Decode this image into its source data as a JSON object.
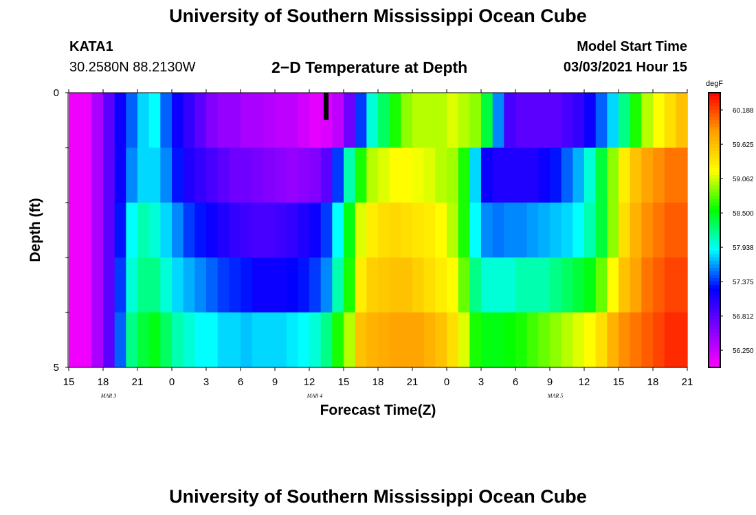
{
  "header": {
    "title": "University of Southern Mississippi Ocean Cube",
    "station": "KATA1",
    "coordinates": "30.2580N 88.2130W",
    "product": "2−D Temperature at Depth",
    "model_start_label": "Model Start Time",
    "model_start_value": "03/03/2021 Hour 15"
  },
  "footer": {
    "title": "University of Southern Mississippi Ocean Cube"
  },
  "chart_data": {
    "type": "heatmap",
    "title": "2−D Temperature at Depth",
    "xlabel": "Forecast Time(Z)",
    "ylabel": "Depth (ft)",
    "x_start_hour_label": "15",
    "x_tick_labels": [
      "15",
      "18",
      "21",
      "0",
      "3",
      "6",
      "9",
      "12",
      "15",
      "18",
      "21",
      "0",
      "3",
      "6",
      "9",
      "12",
      "15",
      "18",
      "21"
    ],
    "date_labels": [
      {
        "text": "MAR 3",
        "tick_index": 1
      },
      {
        "text": "MAR 4",
        "tick_index": 7
      },
      {
        "text": "MAR 5",
        "tick_index": 14
      }
    ],
    "y_tick_labels": [
      "0",
      "5"
    ],
    "ylim": [
      0,
      5
    ],
    "colorbar": {
      "unit": "degF",
      "range": [
        55.97,
        60.47
      ],
      "tick_values": [
        "60.188",
        "59.625",
        "59.062",
        "58.500",
        "57.938",
        "57.375",
        "56.812",
        "56.250"
      ],
      "colors": [
        "#ff00ff",
        "#8000ff",
        "#0000ff",
        "#00ffff",
        "#00ff00",
        "#ffff00",
        "#ffa000",
        "#ff0000"
      ]
    },
    "depth_layers": [
      0,
      1,
      2,
      3,
      4
    ],
    "hours": [
      0,
      2,
      3,
      4,
      5,
      6,
      7,
      8,
      9,
      10,
      11,
      12,
      13,
      14,
      15,
      16,
      17,
      18,
      19,
      20,
      21,
      22,
      23,
      24,
      25,
      26,
      27,
      28,
      29,
      30,
      31,
      32,
      33,
      34,
      35,
      36,
      37,
      38,
      39,
      40,
      41,
      42,
      43,
      44,
      45,
      46,
      47,
      48,
      49,
      50,
      51,
      52,
      53,
      54
    ],
    "layer_values": [
      [
        56.05,
        56.4,
        56.8,
        57.2,
        57.5,
        57.8,
        57.9,
        57.5,
        57.2,
        57.0,
        56.8,
        56.6,
        56.5,
        56.5,
        56.4,
        56.4,
        56.35,
        56.3,
        56.3,
        56.2,
        56.1,
        56.15,
        56.3,
        56.7,
        57.4,
        58.0,
        58.3,
        58.6,
        58.9,
        59.0,
        59.0,
        59.0,
        59.1,
        59.0,
        58.9,
        58.4,
        57.6,
        56.9,
        56.8,
        56.8,
        56.8,
        56.8,
        56.9,
        57.0,
        57.2,
        57.5,
        57.8,
        58.2,
        58.6,
        59.0,
        59.2,
        59.4,
        59.6,
        59.8
      ],
      [
        56.05,
        56.4,
        56.8,
        57.2,
        57.6,
        57.8,
        57.8,
        57.6,
        57.3,
        57.1,
        57.0,
        56.9,
        56.8,
        56.7,
        56.7,
        56.65,
        56.6,
        56.55,
        56.5,
        56.55,
        56.6,
        56.8,
        57.4,
        58.1,
        58.6,
        59.0,
        59.1,
        59.2,
        59.2,
        59.15,
        59.1,
        59.0,
        58.95,
        58.6,
        57.8,
        57.2,
        57.1,
        57.1,
        57.1,
        57.1,
        57.2,
        57.3,
        57.5,
        57.7,
        58.0,
        58.4,
        58.9,
        59.3,
        59.6,
        59.8,
        59.9,
        60.0,
        60.0,
        60.0
      ],
      [
        56.05,
        56.4,
        56.8,
        57.3,
        57.9,
        58.1,
        58.0,
        57.8,
        57.6,
        57.4,
        57.3,
        57.2,
        57.1,
        57.0,
        56.95,
        56.9,
        56.9,
        56.95,
        57.0,
        57.1,
        57.2,
        57.4,
        57.9,
        58.5,
        59.1,
        59.3,
        59.4,
        59.45,
        59.4,
        59.35,
        59.3,
        59.2,
        59.0,
        58.6,
        57.9,
        57.6,
        57.55,
        57.6,
        57.6,
        57.65,
        57.7,
        57.75,
        57.8,
        57.9,
        58.1,
        58.4,
        58.9,
        59.4,
        59.7,
        59.9,
        60.0,
        60.1,
        60.1,
        60.1
      ],
      [
        56.05,
        56.4,
        56.8,
        57.4,
        58.0,
        58.2,
        58.2,
        58.0,
        57.8,
        57.7,
        57.6,
        57.5,
        57.4,
        57.35,
        57.3,
        57.2,
        57.2,
        57.2,
        57.25,
        57.3,
        57.4,
        57.6,
        58.1,
        58.6,
        59.3,
        59.5,
        59.55,
        59.6,
        59.6,
        59.5,
        59.4,
        59.3,
        59.2,
        58.8,
        58.2,
        58.0,
        58.0,
        58.0,
        58.1,
        58.1,
        58.1,
        58.2,
        58.3,
        58.4,
        58.5,
        58.8,
        59.2,
        59.6,
        59.8,
        60.0,
        60.1,
        60.2,
        60.2,
        60.2
      ],
      [
        56.05,
        56.4,
        56.8,
        57.5,
        58.2,
        58.4,
        58.5,
        58.3,
        58.1,
        58.0,
        57.9,
        57.9,
        57.8,
        57.8,
        57.75,
        57.8,
        57.8,
        57.8,
        57.85,
        57.9,
        58.0,
        58.2,
        58.6,
        59.0,
        59.6,
        59.7,
        59.75,
        59.8,
        59.8,
        59.8,
        59.7,
        59.6,
        59.4,
        59.1,
        58.6,
        58.5,
        58.5,
        58.55,
        58.6,
        58.7,
        58.8,
        58.9,
        59.0,
        59.1,
        59.2,
        59.4,
        59.7,
        59.9,
        60.0,
        60.1,
        60.2,
        60.3,
        60.3,
        60.3
      ]
    ]
  }
}
